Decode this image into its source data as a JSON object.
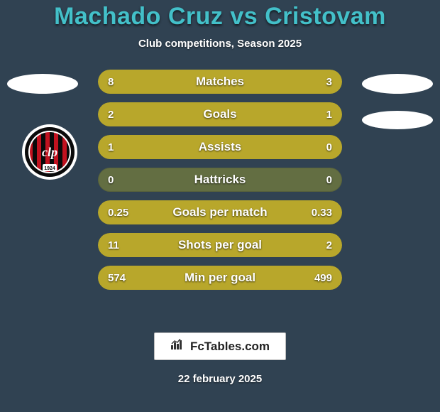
{
  "background_color": "#304252",
  "title": {
    "text": "Machado Cruz vs Cristovam",
    "color": "#43c0c9",
    "fontsize": 34,
    "fontweight": 900
  },
  "subtitle": {
    "text": "Club competitions, Season 2025",
    "color": "#ffffff",
    "fontsize": 15
  },
  "bar_style": {
    "track_color": "#636e42",
    "fill_color": "#b8a72b",
    "height": 34,
    "radius": 17,
    "label_color": "#ffffff",
    "value_color": "#ffffff",
    "row_gap": 12,
    "container_width": 344
  },
  "stats": [
    {
      "label": "Matches",
      "left_value": "8",
      "right_value": "3",
      "left_pct": 72.7,
      "right_pct": 27.3
    },
    {
      "label": "Goals",
      "left_value": "2",
      "right_value": "1",
      "left_pct": 66.7,
      "right_pct": 33.3
    },
    {
      "label": "Assists",
      "left_value": "1",
      "right_value": "0",
      "left_pct": 100.0,
      "right_pct": 0.0
    },
    {
      "label": "Hattricks",
      "left_value": "0",
      "right_value": "0",
      "left_pct": 0.0,
      "right_pct": 0.0
    },
    {
      "label": "Goals per match",
      "left_value": "0.25",
      "right_value": "0.33",
      "left_pct": 43.1,
      "right_pct": 56.9
    },
    {
      "label": "Shots per goal",
      "left_value": "11",
      "right_value": "2",
      "left_pct": 84.6,
      "right_pct": 15.4
    },
    {
      "label": "Min per goal",
      "left_value": "574",
      "right_value": "499",
      "left_pct": 53.5,
      "right_pct": 46.5
    }
  ],
  "side_ellipse": {
    "bg": "#ffffff"
  },
  "club_badge": {
    "ring_outer": "#ffffff",
    "ring_inner": "#0a0a0a",
    "stripes": [
      "#c1121f",
      "#0a0a0a"
    ],
    "monogram": "clp",
    "monogram_color": "#ffffff",
    "year": "1924"
  },
  "footer_logo": {
    "text": "FcTables.com",
    "bg": "#ffffff",
    "border": "#bbbbbb",
    "text_color": "#222222",
    "icon_color": "#333333"
  },
  "footer_date": {
    "text": "22 february 2025",
    "color": "#ffffff"
  }
}
